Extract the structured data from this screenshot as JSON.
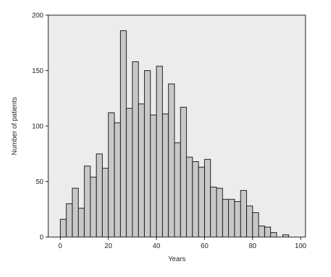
{
  "chart_data": {
    "type": "bar",
    "subtype": "histogram",
    "title": "",
    "xlabel": "Years",
    "ylabel": "Number of patients",
    "xlim": [
      -5,
      102
    ],
    "ylim": [
      0,
      200
    ],
    "x_ticks": [
      0,
      20,
      40,
      60,
      80,
      100
    ],
    "y_ticks": [
      0,
      50,
      100,
      150,
      200
    ],
    "bin_width": 2.5,
    "bins_start": [
      0,
      2.5,
      5,
      7.5,
      10,
      12.5,
      15,
      17.5,
      20,
      22.5,
      25,
      27.5,
      30,
      32.5,
      35,
      37.5,
      40,
      42.5,
      45,
      47.5,
      50,
      52.5,
      55,
      57.5,
      60,
      62.5,
      65,
      67.5,
      70,
      72.5,
      75,
      77.5,
      80,
      82.5,
      85,
      87.5,
      90,
      92.5
    ],
    "values": [
      16,
      30,
      44,
      26,
      64,
      54,
      75,
      62,
      112,
      103,
      186,
      116,
      158,
      120,
      150,
      110,
      154,
      111,
      138,
      85,
      117,
      72,
      68,
      63,
      70,
      45,
      44,
      34,
      34,
      32,
      42,
      28,
      22,
      10,
      9,
      4,
      0,
      2
    ],
    "grid": false,
    "legend": "none",
    "colors": {
      "bar_fill": "#c8c8c8",
      "bar_stroke": "#1a1a1a",
      "plot_background": "#ececec",
      "axis": "#1a1a1a"
    }
  }
}
